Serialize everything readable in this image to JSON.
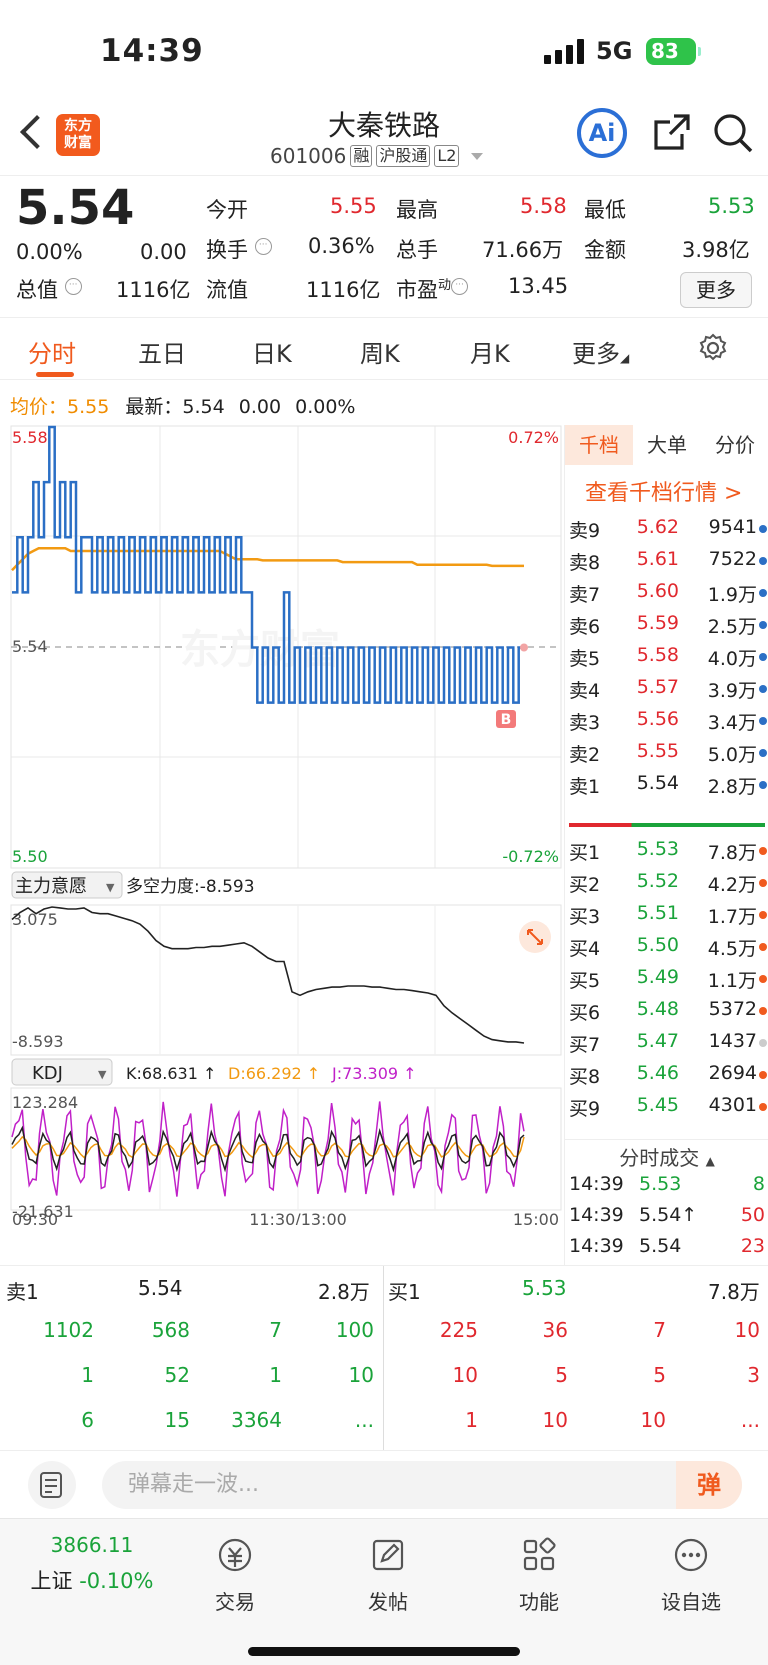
{
  "status_bar": {
    "time": "14:39",
    "network": "5G",
    "battery": "83"
  },
  "header": {
    "logo_line1": "东方",
    "logo_line2": "财富",
    "title": "大秦铁路",
    "code": "601006",
    "tags": [
      "融",
      "沪股通",
      "L2"
    ],
    "ai_label": "Ai"
  },
  "quote": {
    "price": "5.54",
    "change_pct": "0.00%",
    "change": "0.00",
    "labels": {
      "open": "今开",
      "high": "最高",
      "low": "最低",
      "turnover": "换手",
      "volume": "总手",
      "amount": "金额",
      "mktcap": "总值",
      "float_cap": "流值",
      "pe": "市盈",
      "pe_sup": "动"
    },
    "open": "5.55",
    "high": "5.58",
    "low": "5.53",
    "turnover": "0.36%",
    "volume": "71.66万",
    "amount": "3.98亿",
    "mktcap": "1116亿",
    "float_cap": "1116亿",
    "pe": "13.45",
    "more": "更多"
  },
  "tabs": [
    "分时",
    "五日",
    "日K",
    "周K",
    "月K",
    "更多"
  ],
  "avg_line": {
    "avg_label": "均价：",
    "avg": "5.55",
    "latest_label": "最新：",
    "latest": "5.54",
    "chg": "0.00",
    "pct": "0.00%"
  },
  "chart_data": {
    "type": "line",
    "y_labels": {
      "top": "5.58",
      "mid": "5.54",
      "bottom": "5.50",
      "top_pct": "0.72%",
      "bottom_pct": "-0.72%"
    },
    "x_labels": [
      "09:30",
      "11:30/13:00",
      "15:00"
    ],
    "ylim": [
      5.5,
      5.58
    ],
    "price_marker": "B",
    "series": [
      {
        "name": "最新",
        "color": "#2b6fc5",
        "values": [
          5.55,
          5.56,
          5.55,
          5.56,
          5.57,
          5.56,
          5.57,
          5.58,
          5.56,
          5.57,
          5.56,
          5.57,
          5.55,
          5.56,
          5.56,
          5.55,
          5.56,
          5.55,
          5.56,
          5.55,
          5.56,
          5.55,
          5.56,
          5.55,
          5.56,
          5.55,
          5.56,
          5.55,
          5.56,
          5.55,
          5.56,
          5.55,
          5.56,
          5.55,
          5.56,
          5.55,
          5.56,
          5.55,
          5.56,
          5.55,
          5.56,
          5.55,
          5.56,
          5.55,
          5.55,
          5.54,
          5.53,
          5.54,
          5.53,
          5.54,
          5.53,
          5.55,
          5.53,
          5.54,
          5.53,
          5.54,
          5.53,
          5.54,
          5.53,
          5.54,
          5.53,
          5.54,
          5.53,
          5.54,
          5.53,
          5.54,
          5.53,
          5.54,
          5.53,
          5.54,
          5.53,
          5.54,
          5.53,
          5.54,
          5.53,
          5.54,
          5.53,
          5.54,
          5.53,
          5.54,
          5.53,
          5.54,
          5.53,
          5.54,
          5.53,
          5.54,
          5.53,
          5.54,
          5.53,
          5.54,
          5.53,
          5.54,
          5.53,
          5.54,
          5.53,
          5.54,
          5.54
        ]
      },
      {
        "name": "均价",
        "color": "#f29a12",
        "values": [
          5.554,
          5.555,
          5.556,
          5.557,
          5.5575,
          5.558,
          5.558,
          5.558,
          5.558,
          5.558,
          5.558,
          5.5575,
          5.5575,
          5.5575,
          5.5575,
          5.5575,
          5.5575,
          5.5575,
          5.5575,
          5.5575,
          5.5575,
          5.5575,
          5.5575,
          5.5575,
          5.5575,
          5.5575,
          5.5575,
          5.5575,
          5.5575,
          5.5575,
          5.5575,
          5.5575,
          5.5575,
          5.5575,
          5.5575,
          5.5575,
          5.5575,
          5.5575,
          5.5575,
          5.5575,
          5.557,
          5.5565,
          5.556,
          5.556,
          5.556,
          5.556,
          5.556,
          5.5558,
          5.5558,
          5.5558,
          5.5558,
          5.5558,
          5.5558,
          5.5558,
          5.5558,
          5.5558,
          5.5558,
          5.5558,
          5.5558,
          5.5558,
          5.5558,
          5.5558,
          5.5555,
          5.5555,
          5.5555,
          5.5555,
          5.5555,
          5.5555,
          5.5555,
          5.5555,
          5.5555,
          5.5555,
          5.5555,
          5.5555,
          5.5555,
          5.5555,
          5.555,
          5.555,
          5.555,
          5.555,
          5.555,
          5.555,
          5.555,
          5.555,
          5.555,
          5.555,
          5.555,
          5.555,
          5.555,
          5.555,
          5.5548,
          5.5548,
          5.5548,
          5.5548,
          5.5548,
          5.5548,
          5.5548
        ]
      }
    ],
    "indicator1": {
      "name": "主力意愿",
      "text": "多空力度:-8.593",
      "top": "3.075",
      "bottom": "-8.593",
      "ylim": [
        -8.593,
        3.075
      ],
      "values": [
        2.0,
        2.6,
        3.0,
        2.5,
        2.9,
        3.075,
        3.0,
        2.9,
        2.9,
        3.0,
        2.6,
        2.5,
        2.5,
        2.3,
        2.1,
        1.9,
        1.6,
        1.0,
        0.2,
        -0.3,
        -0.5,
        -0.5,
        -0.5,
        -0.4,
        -0.4,
        -0.3,
        -0.3,
        -0.2,
        -0.1,
        0.0,
        -0.3,
        -0.8,
        -1.3,
        -1.6,
        -1.6,
        -4.2,
        -4.5,
        -4.2,
        -4.0,
        -3.9,
        -3.8,
        -3.8,
        -3.7,
        -3.7,
        -3.7,
        -3.8,
        -3.8,
        -3.9,
        -4.0,
        -4.0,
        -4.1,
        -4.2,
        -4.3,
        -4.5,
        -5.4,
        -6.0,
        -6.5,
        -7.0,
        -7.5,
        -8.0,
        -8.3,
        -8.4,
        -8.5,
        -8.5,
        -8.593
      ]
    },
    "indicator2": {
      "name": "KDJ",
      "k_text": "K:68.631 ↑",
      "d_text": "D:66.292 ↑",
      "j_text": "J:73.309 ↑",
      "top": "123.284",
      "bottom": "-21.631",
      "ylim": [
        -21.631,
        123.284
      ],
      "k": 68.631,
      "d": 66.292,
      "j": 73.309
    }
  },
  "side": {
    "tabs": [
      "千档",
      "大单",
      "分价"
    ],
    "view_depth": "查看千档行情 >",
    "asks": [
      {
        "label": "卖9",
        "price": "5.62",
        "vol": "9541",
        "dot": "#2b6fc5"
      },
      {
        "label": "卖8",
        "price": "5.61",
        "vol": "7522",
        "dot": "#2b6fc5"
      },
      {
        "label": "卖7",
        "price": "5.60",
        "vol": "1.9万",
        "dot": "#2b6fc5"
      },
      {
        "label": "卖6",
        "price": "5.59",
        "vol": "2.5万",
        "dot": "#2b6fc5"
      },
      {
        "label": "卖5",
        "price": "5.58",
        "vol": "4.0万",
        "dot": "#2b6fc5"
      },
      {
        "label": "卖4",
        "price": "5.57",
        "vol": "3.9万",
        "dot": "#2b6fc5"
      },
      {
        "label": "卖3",
        "price": "5.56",
        "vol": "3.4万",
        "dot": "#2b6fc5"
      },
      {
        "label": "卖2",
        "price": "5.55",
        "vol": "5.0万",
        "dot": "#2b6fc5"
      },
      {
        "label": "卖1",
        "price": "5.54",
        "vol": "2.8万",
        "dot": "#2b6fc5"
      }
    ],
    "bids": [
      {
        "label": "买1",
        "price": "5.53",
        "vol": "7.8万",
        "dot": "#f05a1e"
      },
      {
        "label": "买2",
        "price": "5.52",
        "vol": "4.2万",
        "dot": "#f05a1e"
      },
      {
        "label": "买3",
        "price": "5.51",
        "vol": "1.7万",
        "dot": "#f05a1e"
      },
      {
        "label": "买4",
        "price": "5.50",
        "vol": "4.5万",
        "dot": "#f05a1e"
      },
      {
        "label": "买5",
        "price": "5.49",
        "vol": "1.1万",
        "dot": "#f05a1e"
      },
      {
        "label": "买6",
        "price": "5.48",
        "vol": "5372",
        "dot": "#f05a1e"
      },
      {
        "label": "买7",
        "price": "5.47",
        "vol": "1437",
        "dot": "#cccccc"
      },
      {
        "label": "买8",
        "price": "5.46",
        "vol": "2694",
        "dot": "#f05a1e"
      },
      {
        "label": "买9",
        "price": "5.45",
        "vol": "4301",
        "dot": "#f05a1e"
      }
    ],
    "trades_title": "分时成交",
    "trades": [
      {
        "time": "14:39",
        "price": "5.53",
        "vol": "8"
      },
      {
        "time": "14:39",
        "price": "5.54↑",
        "vol": "50"
      },
      {
        "time": "14:39",
        "price": "5.54",
        "vol": "23"
      }
    ]
  },
  "lower": {
    "sell_label": "卖1",
    "sell_price": "5.54",
    "sell_vol": "2.8万",
    "buy_label": "买1",
    "buy_price": "5.53",
    "buy_vol": "7.8万",
    "sell_queue": [
      [
        "1102",
        "568",
        "7",
        "100"
      ],
      [
        "1",
        "52",
        "1",
        "10"
      ],
      [
        "6",
        "15",
        "3364",
        "..."
      ]
    ],
    "buy_queue": [
      [
        "225",
        "36",
        "7",
        "10"
      ],
      [
        "10",
        "5",
        "5",
        "3"
      ],
      [
        "1",
        "10",
        "10",
        "..."
      ]
    ]
  },
  "danmu": {
    "placeholder": "弹幕走一波...",
    "button": "弹"
  },
  "bottom_nav": {
    "index_value": "3866.11",
    "index_name": "上证",
    "index_pct": "-0.10%",
    "items": [
      "交易",
      "发帖",
      "功能",
      "设自选"
    ]
  }
}
